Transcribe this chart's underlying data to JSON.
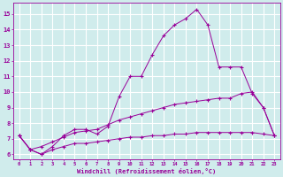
{
  "line1_x": [
    0,
    1,
    2,
    3,
    4,
    5,
    6,
    7,
    8,
    9,
    10,
    11,
    12,
    13,
    14,
    15,
    16,
    17,
    18,
    19,
    20,
    21,
    22,
    23
  ],
  "line1_y": [
    7.2,
    6.3,
    6.0,
    6.5,
    7.2,
    7.6,
    7.6,
    7.3,
    7.8,
    9.7,
    11.0,
    11.0,
    12.4,
    13.6,
    14.3,
    14.7,
    15.3,
    14.3,
    11.6,
    11.6,
    11.6,
    9.9,
    9.0,
    7.2
  ],
  "line2_x": [
    0,
    1,
    2,
    3,
    4,
    5,
    6,
    7,
    8,
    9,
    10,
    11,
    12,
    13,
    14,
    15,
    16,
    17,
    18,
    19,
    20,
    21,
    22,
    23
  ],
  "line2_y": [
    7.2,
    6.3,
    6.5,
    6.8,
    7.1,
    7.4,
    7.5,
    7.6,
    7.9,
    8.2,
    8.4,
    8.6,
    8.8,
    9.0,
    9.2,
    9.3,
    9.4,
    9.5,
    9.6,
    9.6,
    9.9,
    10.0,
    9.0,
    7.2
  ],
  "line3_x": [
    0,
    1,
    2,
    3,
    4,
    5,
    6,
    7,
    8,
    9,
    10,
    11,
    12,
    13,
    14,
    15,
    16,
    17,
    18,
    19,
    20,
    21,
    22,
    23
  ],
  "line3_y": [
    7.2,
    6.3,
    6.0,
    6.3,
    6.5,
    6.7,
    6.7,
    6.8,
    6.9,
    7.0,
    7.1,
    7.1,
    7.2,
    7.2,
    7.3,
    7.3,
    7.4,
    7.4,
    7.4,
    7.4,
    7.4,
    7.4,
    7.3,
    7.2
  ],
  "line_color": "#990099",
  "marker": "+",
  "marker_size": 3,
  "bg_color": "#d0ecec",
  "grid_color": "#b8dada",
  "xlabel": "Windchill (Refroidissement éolien,°C)",
  "ylabel_ticks": [
    6,
    7,
    8,
    9,
    10,
    11,
    12,
    13,
    14,
    15
  ],
  "xlim": [
    -0.5,
    23.5
  ],
  "ylim": [
    5.7,
    15.7
  ],
  "xticks": [
    0,
    1,
    2,
    3,
    4,
    5,
    6,
    7,
    8,
    9,
    10,
    11,
    12,
    13,
    14,
    15,
    16,
    17,
    18,
    19,
    20,
    21,
    22,
    23
  ]
}
